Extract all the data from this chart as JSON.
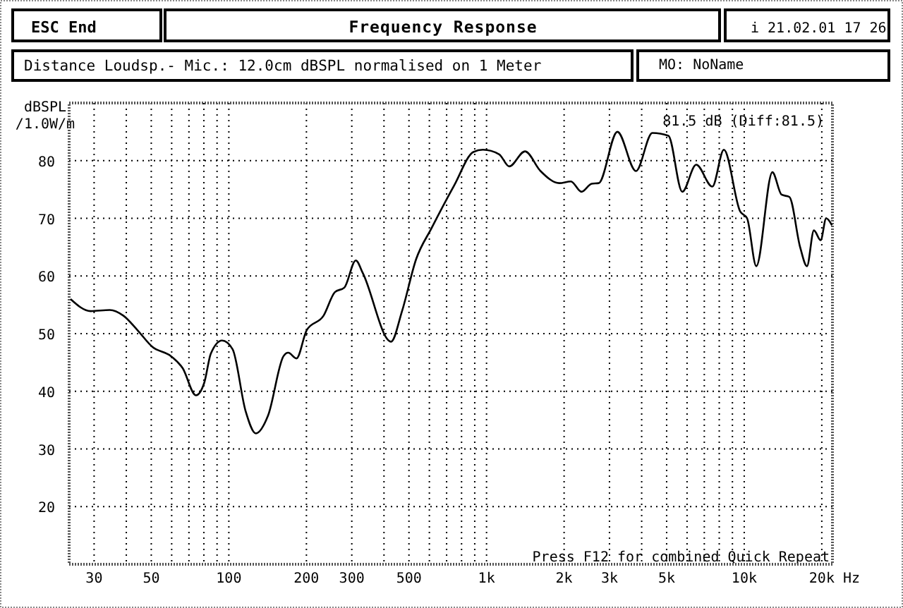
{
  "chart_data": {
    "type": "line",
    "title": "Frequency Response",
    "subtitle": "Distance Loudsp.- Mic.: 12.0cm dBSPL normalised on 1 Meter",
    "ylabel": "dBSPL\n/1.0W/m",
    "xlabel": "Hz",
    "annotations": [
      "ESC End",
      "i 21.02.01 17 26",
      "MO: NoName",
      "81.5 dB (Diff:81.5)",
      "Press F12 for combined Quick Repeat"
    ],
    "log": "x",
    "grid": true,
    "marker": "none",
    "line_style": "solid",
    "xlim": [
      24,
      22000
    ],
    "ylim": [
      10,
      90
    ],
    "xticks": [
      {
        "value": 30,
        "label": "30"
      },
      {
        "value": 40,
        "label": null
      },
      {
        "value": 50,
        "label": "50"
      },
      {
        "value": 60,
        "label": null
      },
      {
        "value": 70,
        "label": null
      },
      {
        "value": 80,
        "label": null
      },
      {
        "value": 90,
        "label": null
      },
      {
        "value": 100,
        "label": "100"
      },
      {
        "value": 200,
        "label": "200"
      },
      {
        "value": 300,
        "label": "300"
      },
      {
        "value": 400,
        "label": null
      },
      {
        "value": 500,
        "label": "500"
      },
      {
        "value": 600,
        "label": null
      },
      {
        "value": 700,
        "label": null
      },
      {
        "value": 800,
        "label": null
      },
      {
        "value": 900,
        "label": null
      },
      {
        "value": 1000,
        "label": "1k"
      },
      {
        "value": 2000,
        "label": "2k"
      },
      {
        "value": 3000,
        "label": "3k"
      },
      {
        "value": 4000,
        "label": null
      },
      {
        "value": 5000,
        "label": "5k"
      },
      {
        "value": 6000,
        "label": null
      },
      {
        "value": 7000,
        "label": null
      },
      {
        "value": 8000,
        "label": null
      },
      {
        "value": 9000,
        "label": null
      },
      {
        "value": 10000,
        "label": "10k"
      },
      {
        "value": 20000,
        "label": "20k"
      }
    ],
    "yticks": [
      20,
      30,
      40,
      50,
      60,
      70,
      80
    ],
    "series": [
      {
        "color": "#000000",
        "x": [
          24.3,
          29.1,
          34.5,
          39,
          44.2,
          50.5,
          59.6,
          66.2,
          74.5,
          80.3,
          85.1,
          94.1,
          103.4,
          116.1,
          127.3,
          142,
          163,
          170,
          183,
          200.5,
          233,
          258,
          281,
          311,
          331,
          426,
          470,
          533,
          612,
          749,
          889,
          968,
          1120,
          1225,
          1410,
          1620,
          1915,
          2125,
          2336,
          2560,
          2725,
          3220,
          3800,
          4400,
          5080,
          5750,
          6510,
          7520,
          8340,
          9640,
          10260,
          11140,
          12860,
          13960,
          14980,
          16480,
          17520,
          18640,
          19800,
          20800,
          21900
        ],
        "values": [
          56,
          53.9,
          54.1,
          53.1,
          50.6,
          47.7,
          46.1,
          44,
          39.3,
          41.5,
          46.5,
          48.8,
          47.3,
          36.6,
          32.7,
          35.8,
          46.1,
          46.7,
          45.7,
          50.6,
          53.1,
          57.2,
          58,
          62.7,
          60.5,
          48.6,
          53.9,
          62.9,
          68.3,
          75.7,
          81.5,
          81.9,
          81.1,
          79,
          81.6,
          78.2,
          76.1,
          76.4,
          74.6,
          76,
          76.1,
          85,
          78.2,
          84.8,
          84.3,
          74.6,
          79.3,
          75.5,
          81.9,
          71.2,
          70,
          61.7,
          78,
          74.1,
          73.7,
          65,
          61.7,
          67.9,
          66.2,
          70,
          68.8
        ]
      }
    ]
  }
}
